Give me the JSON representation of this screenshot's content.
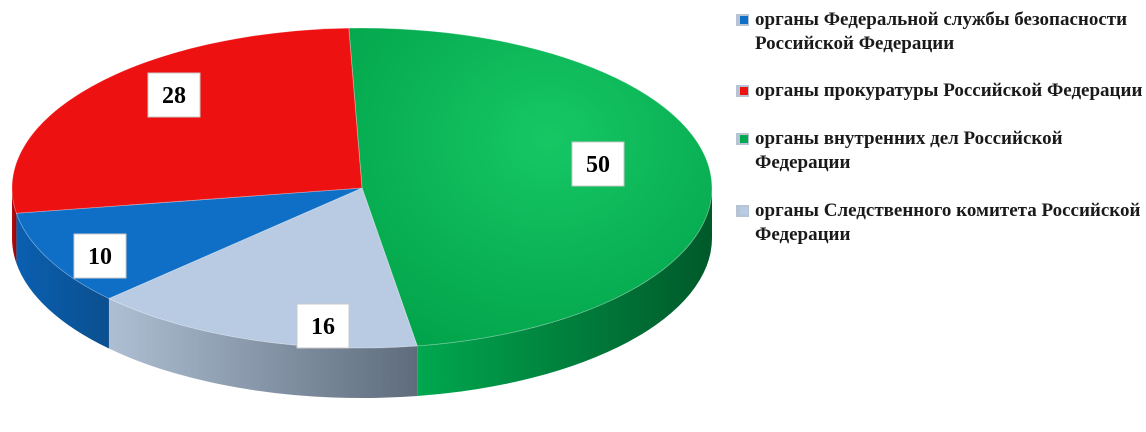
{
  "chart_data": {
    "type": "pie",
    "title": "",
    "slices": [
      {
        "label": "органы Федеральной службы безопасности Российской Федерации",
        "value": 10,
        "color": "#0f6fc6"
      },
      {
        "label": "органы прокуратуры Российской Федерации",
        "value": 28,
        "color": "#ee1111"
      },
      {
        "label": "органы внутренних дел Российской Федерации",
        "value": 50,
        "color": "#00a84f"
      },
      {
        "label": "органы Следственного комитета Российской Федерации",
        "value": 16,
        "color": "#b8cbe3"
      }
    ],
    "legend_position": "right",
    "style": "3d"
  }
}
